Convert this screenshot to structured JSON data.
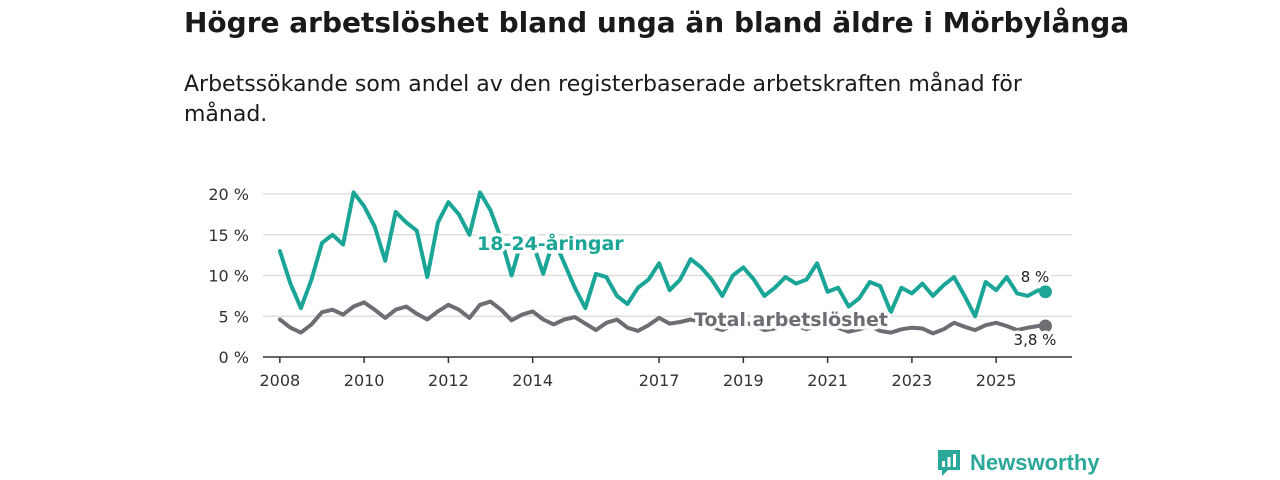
{
  "title": "Högre arbetslöshet bland unga än bland äldre i Mörbylånga",
  "subtitle": "Arbetssökande som andel av den registerbaserade arbetskraften månad för månad.",
  "brand": "Newsworthy",
  "colors": {
    "youth": "#1aa596",
    "total": "#6e6d74",
    "grid": "#d9d9d9",
    "axis": "#333333"
  },
  "chart_data": {
    "type": "line",
    "title": "Högre arbetslöshet bland unga än bland äldre i Mörbylånga",
    "xlabel": "",
    "ylabel": "",
    "xlim": [
      2007.6,
      2026.8
    ],
    "ylim": [
      0,
      20
    ],
    "x_ticks": [
      2008,
      2010,
      2012,
      2014,
      2017,
      2019,
      2021,
      2023,
      2025
    ],
    "y_ticks": [
      0,
      5,
      10,
      15,
      20
    ],
    "y_tick_labels": [
      "0 %",
      "5 %",
      "10 %",
      "15 %",
      "20 %"
    ],
    "grid": true,
    "series": [
      {
        "name": "18-24-åringar",
        "label": "18-24-åringar",
        "end_label": "8 %",
        "x": [
          2008.0,
          2008.25,
          2008.5,
          2008.75,
          2009.0,
          2009.25,
          2009.5,
          2009.75,
          2010.0,
          2010.25,
          2010.5,
          2010.75,
          2011.0,
          2011.25,
          2011.5,
          2011.75,
          2012.0,
          2012.25,
          2012.5,
          2012.75,
          2013.0,
          2013.25,
          2013.5,
          2013.75,
          2014.0,
          2014.25,
          2014.5,
          2014.75,
          2015.0,
          2015.25,
          2015.5,
          2015.75,
          2016.0,
          2016.25,
          2016.5,
          2016.75,
          2017.0,
          2017.25,
          2017.5,
          2017.75,
          2018.0,
          2018.25,
          2018.5,
          2018.75,
          2019.0,
          2019.25,
          2019.5,
          2019.75,
          2020.0,
          2020.25,
          2020.5,
          2020.75,
          2021.0,
          2021.25,
          2021.5,
          2021.75,
          2022.0,
          2022.25,
          2022.5,
          2022.75,
          2023.0,
          2023.25,
          2023.5,
          2023.75,
          2024.0,
          2024.25,
          2024.5,
          2024.75,
          2025.0,
          2025.25,
          2025.5,
          2025.75,
          2026.0,
          2026.17
        ],
        "values": [
          13,
          9,
          6,
          9.5,
          14,
          15,
          13.8,
          20.2,
          18.5,
          16,
          11.8,
          17.8,
          16.5,
          15.5,
          9.8,
          16.5,
          19,
          17.5,
          15,
          20.2,
          18,
          14.5,
          10,
          14.5,
          14,
          10.2,
          14.5,
          11.5,
          8.5,
          6,
          10.2,
          9.8,
          7.5,
          6.5,
          8.5,
          9.5,
          11.5,
          8.2,
          9.5,
          12,
          11,
          9.5,
          7.5,
          10,
          11,
          9.5,
          7.5,
          8.5,
          9.8,
          9,
          9.5,
          11.5,
          8,
          8.5,
          6.2,
          7.2,
          9.2,
          8.7,
          5.5,
          8.5,
          7.8,
          9,
          7.5,
          8.8,
          9.8,
          7.5,
          5,
          9.2,
          8.2,
          9.8,
          7.8,
          7.5,
          8.2,
          8.0
        ]
      },
      {
        "name": "Total arbetslöshet",
        "label": "Total arbetslöshet",
        "end_label": "3,8 %",
        "x": [
          2008.0,
          2008.25,
          2008.5,
          2008.75,
          2009.0,
          2009.25,
          2009.5,
          2009.75,
          2010.0,
          2010.25,
          2010.5,
          2010.75,
          2011.0,
          2011.25,
          2011.5,
          2011.75,
          2012.0,
          2012.25,
          2012.5,
          2012.75,
          2013.0,
          2013.25,
          2013.5,
          2013.75,
          2014.0,
          2014.25,
          2014.5,
          2014.75,
          2015.0,
          2015.25,
          2015.5,
          2015.75,
          2016.0,
          2016.25,
          2016.5,
          2016.75,
          2017.0,
          2017.25,
          2017.5,
          2017.75,
          2018.0,
          2018.25,
          2018.5,
          2018.75,
          2019.0,
          2019.25,
          2019.5,
          2019.75,
          2020.0,
          2020.25,
          2020.5,
          2020.75,
          2021.0,
          2021.25,
          2021.5,
          2021.75,
          2022.0,
          2022.25,
          2022.5,
          2022.75,
          2023.0,
          2023.25,
          2023.5,
          2023.75,
          2024.0,
          2024.25,
          2024.5,
          2024.75,
          2025.0,
          2025.25,
          2025.5,
          2025.75,
          2026.0,
          2026.17
        ],
        "values": [
          4.6,
          3.6,
          3,
          4,
          5.5,
          5.8,
          5.2,
          6.2,
          6.7,
          5.8,
          4.8,
          5.8,
          6.2,
          5.3,
          4.6,
          5.6,
          6.4,
          5.8,
          4.8,
          6.4,
          6.8,
          5.8,
          4.5,
          5.2,
          5.6,
          4.6,
          4,
          4.6,
          4.9,
          4.1,
          3.3,
          4.2,
          4.6,
          3.6,
          3.2,
          3.9,
          4.8,
          4.1,
          4.3,
          4.6,
          4.3,
          3.7,
          3.3,
          3.9,
          4.3,
          3.9,
          3.3,
          3.5,
          4.2,
          3.9,
          3.4,
          3.9,
          4.2,
          3.6,
          3.1,
          3.4,
          3.8,
          3.2,
          3,
          3.4,
          3.6,
          3.5,
          2.9,
          3.4,
          4.2,
          3.7,
          3.3,
          3.9,
          4.2,
          3.8,
          3.3,
          3.6,
          3.8,
          3.8
        ]
      }
    ]
  }
}
